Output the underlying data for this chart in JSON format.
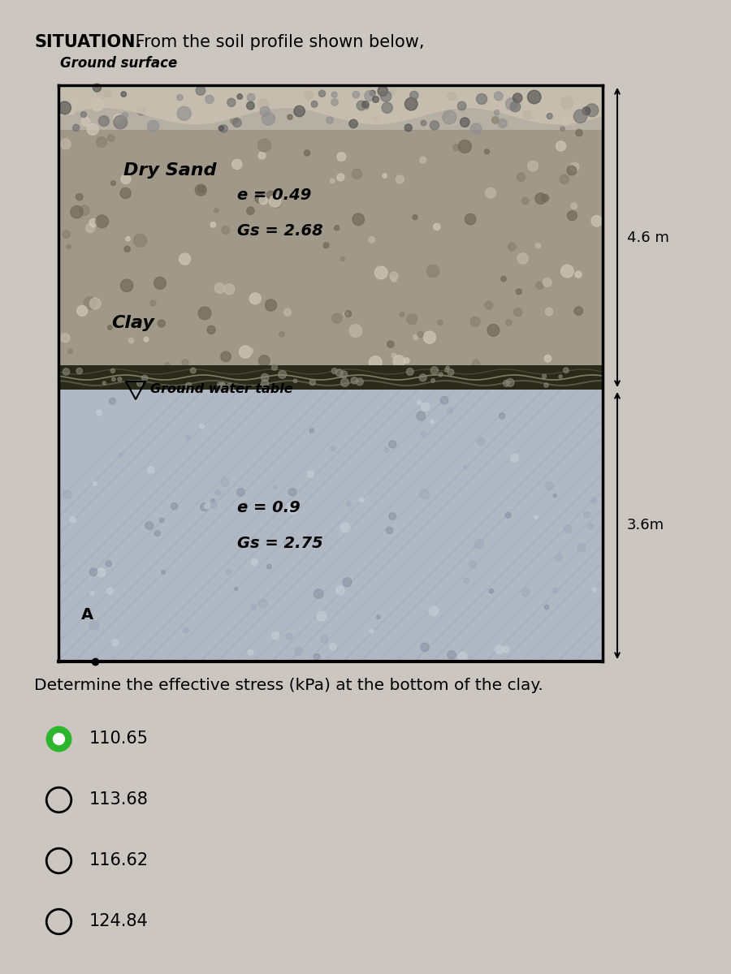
{
  "title_bold": "SITUATION.",
  "title_normal": " From the soil profile shown below,",
  "figure_bg": "#cbc6c0",
  "ground_surface_label": "Ground surface",
  "dry_sand_label": "Dry Sand",
  "sand_e": "e = 0.49",
  "sand_Gs": "Gs = 2.68",
  "gwt_label": "Ground water table",
  "clay_label": "Clay",
  "clay_e": "e = 0.9",
  "clay_Gs": "Gs = 2.75",
  "depth_sand": "4.6 m",
  "depth_clay": "3.6m",
  "point_label": "A",
  "question": "Determine the effective stress (kPa) at the bottom of the clay.",
  "choices": [
    "110.65",
    "113.68",
    "116.62",
    "124.84"
  ],
  "selected_index": 0,
  "selected_color": "#2db52d",
  "sand_main_color": "#a09480",
  "sand_top_band_color": "#b0a898",
  "clay_main_color": "#b8bfc8",
  "clay_texture_color": "#a0a8b0",
  "gwt_dark_color": "#3a3a2a",
  "gwt_light_color": "#787868"
}
